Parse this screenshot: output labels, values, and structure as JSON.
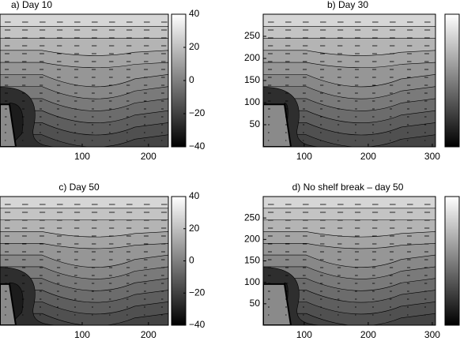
{
  "chart_data": [
    {
      "type": "contour",
      "title": "a) Day 10",
      "xlim": [
        -24,
        230
      ],
      "xticks": [
        100,
        200
      ],
      "ylim": [
        0,
        300
      ],
      "clim": [
        -40,
        40
      ],
      "cticks": [
        40,
        20,
        0,
        {
          "value": -20,
          "label": "−20"
        },
        {
          "value": -40,
          "label": "−40"
        }
      ]
    },
    {
      "type": "contour",
      "title": "b) Day 30",
      "xlim": [
        36,
        305
      ],
      "xticks": [
        100,
        200,
        300
      ],
      "ylim": [
        0,
        300
      ],
      "yticks": [
        50,
        100,
        150,
        200,
        250
      ],
      "clim": [
        -40,
        40
      ]
    },
    {
      "type": "contour",
      "title": "c) Day 50",
      "xlim": [
        -24,
        230
      ],
      "xticks": [
        100,
        200
      ],
      "ylim": [
        0,
        300
      ],
      "clim": [
        -40,
        40
      ],
      "cticks": [
        40,
        20,
        0,
        {
          "value": -20,
          "label": "−20"
        },
        {
          "value": -40,
          "label": "−40"
        }
      ]
    },
    {
      "type": "contour",
      "title": "d) No shelf break – day 50",
      "xlim": [
        36,
        305
      ],
      "xticks": [
        100,
        200,
        300
      ],
      "ylim": [
        0,
        300
      ],
      "yticks": [
        50,
        100,
        150,
        200,
        250
      ],
      "clim": [
        -40,
        40
      ]
    }
  ]
}
